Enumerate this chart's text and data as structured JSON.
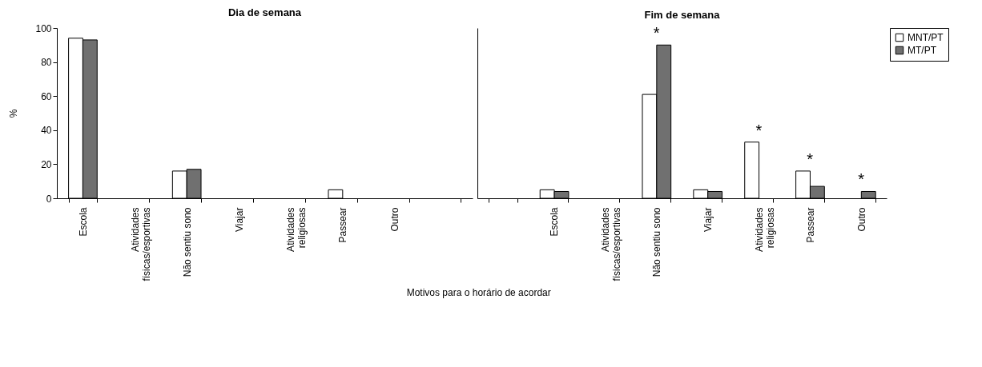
{
  "chart_data": [
    {
      "type": "bar",
      "title": "Dia de semana",
      "xlabel": "Motivos para o horário de acordar",
      "ylabel": "%",
      "categories": [
        "Escola",
        "Atividades\nfísicas/esportivas",
        "Não sentiu sono",
        "Viajar",
        "Atividades\nreligiosas",
        "Passear",
        "Outro",
        null
      ],
      "series": [
        {
          "name": "MNT/PT",
          "color": "#ffffff",
          "values": [
            94,
            null,
            16,
            null,
            null,
            5,
            null,
            null
          ]
        },
        {
          "name": "MT/PT",
          "color": "#707070",
          "values": [
            93,
            null,
            17,
            null,
            null,
            null,
            null,
            null
          ]
        }
      ],
      "ylim": [
        0,
        100
      ],
      "yticks": [
        0,
        20,
        40,
        60,
        80,
        100
      ],
      "legend": "right"
    },
    {
      "type": "bar",
      "title": "Fim de semana",
      "categories": [
        null,
        "Escola",
        "Atividades\nfísicas/esportivas",
        "Não sentiu sono",
        "Viajar",
        "Atividades\nreligiosas",
        "Passear",
        "Outro"
      ],
      "series": [
        {
          "name": "MNT/PT",
          "color": "#ffffff",
          "values": [
            null,
            5,
            null,
            61,
            5,
            33,
            16,
            null
          ]
        },
        {
          "name": "MT/PT",
          "color": "#707070",
          "values": [
            null,
            4,
            null,
            90,
            4,
            null,
            7,
            4
          ]
        }
      ],
      "ylim": [
        0,
        100
      ],
      "yticks": [
        0,
        20,
        40,
        60,
        80,
        100
      ],
      "tick_labels": "x",
      "legend": "right",
      "annotations": [
        {
          "text": "*",
          "x": "Não sentiu sono",
          "y": 90
        },
        {
          "text": "*",
          "x": "Atividades\nreligiosas",
          "y": 33
        },
        {
          "text": "*",
          "x": "Passear",
          "y": 16
        },
        {
          "text": "*",
          "x": "Outro",
          "y": 4
        }
      ]
    }
  ]
}
